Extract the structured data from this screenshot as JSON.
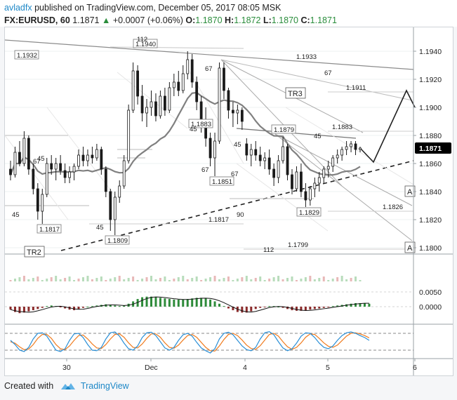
{
  "header": {
    "user": "avladfx",
    "published": "published on TradingView.com, December 05, 2017 08:05 MSK",
    "symbol": "FX:EURUSD, 60",
    "price": "1.1871",
    "change_arrow": "▲",
    "change": "+0.0007 (+0.06%)",
    "o_label": "O:",
    "o": "1.1870",
    "h_label": "H:",
    "h": "1.1872",
    "l_label": "L:",
    "l": "1.1870",
    "c_label": "C:",
    "c": "1.1871"
  },
  "footer": {
    "created_with": "Created with",
    "brand": "TradingView"
  },
  "colors": {
    "up": "#1a1a1a",
    "ma": "#808080",
    "trend": "#999999",
    "macd_up": "#2e8b3a",
    "macd_down": "#8b2b2b",
    "stoch_k": "#2a8fd6",
    "stoch_d": "#f07c1f",
    "price_badge": "#000000"
  },
  "chart_data": {
    "type": "candlestick",
    "y_ticks": [
      "1.1940",
      "1.1920",
      "1.1900",
      "1.1880",
      "1.1860",
      "1.1840",
      "1.1820",
      "1.1800"
    ],
    "ylim": [
      1.1796,
      1.1956
    ],
    "x_ticks": [
      "30",
      "Dec",
      "4",
      "5",
      "6"
    ],
    "current_price": "1.1871",
    "price_labels": [
      {
        "text": "1.1932",
        "y": 1.1932
      },
      {
        "text": "1.1940",
        "y": 1.194
      },
      {
        "text": "1.1883",
        "y": 1.1883
      },
      {
        "text": "1.1817",
        "y": 1.1817
      },
      {
        "text": "1.1809",
        "y": 1.1809
      },
      {
        "text": "1.1851",
        "y": 1.1851
      },
      {
        "text": "1.1879",
        "y": 1.1879
      },
      {
        "text": "1.1829",
        "y": 1.1829
      }
    ],
    "level_labels": [
      {
        "text": "1.1933",
        "y": 1.1933
      },
      {
        "text": "1.1911",
        "y": 1.1911
      },
      {
        "text": "1.1883",
        "y": 1.1883
      },
      {
        "text": "1.1826",
        "y": 1.1826
      },
      {
        "text": "1.1817",
        "y": 1.1817
      },
      {
        "text": "1.1799",
        "y": 1.1799
      }
    ],
    "count_labels": [
      "112",
      "67",
      "45",
      "45",
      "45",
      "45",
      "67",
      "45",
      "67",
      "67",
      "45",
      "90",
      "112",
      "67"
    ],
    "pattern_labels": [
      "TR3",
      "TR2",
      "A",
      "A"
    ],
    "candles": [
      [
        1.1856,
        1.1862,
        1.1848,
        1.1852
      ],
      [
        1.1852,
        1.1872,
        1.185,
        1.1868
      ],
      [
        1.1868,
        1.1876,
        1.1858,
        1.186
      ],
      [
        1.186,
        1.1883,
        1.1858,
        1.1878
      ],
      [
        1.1878,
        1.188,
        1.1852,
        1.1856
      ],
      [
        1.1856,
        1.186,
        1.1838,
        1.1842
      ],
      [
        1.1842,
        1.1846,
        1.182,
        1.1826
      ],
      [
        1.1826,
        1.1842,
        1.1817,
        1.1838
      ],
      [
        1.1838,
        1.1864,
        1.1836,
        1.186
      ],
      [
        1.186,
        1.1866,
        1.1852,
        1.1856
      ],
      [
        1.1856,
        1.1864,
        1.1848,
        1.186
      ],
      [
        1.186,
        1.1866,
        1.1852,
        1.1855
      ],
      [
        1.1855,
        1.186,
        1.1846,
        1.185
      ],
      [
        1.185,
        1.1858,
        1.1846,
        1.1854
      ],
      [
        1.1854,
        1.186,
        1.1848,
        1.1858
      ],
      [
        1.1858,
        1.187,
        1.1856,
        1.1866
      ],
      [
        1.1866,
        1.1872,
        1.1858,
        1.1862
      ],
      [
        1.1862,
        1.187,
        1.1858,
        1.1866
      ],
      [
        1.1866,
        1.1872,
        1.186,
        1.1864
      ],
      [
        1.1864,
        1.1874,
        1.1862,
        1.187
      ],
      [
        1.187,
        1.1872,
        1.1852,
        1.1856
      ],
      [
        1.1856,
        1.1858,
        1.1836,
        1.184
      ],
      [
        1.184,
        1.1842,
        1.1812,
        1.182
      ],
      [
        1.182,
        1.184,
        1.1809,
        1.1836
      ],
      [
        1.1836,
        1.1848,
        1.1832,
        1.1844
      ],
      [
        1.1844,
        1.1866,
        1.1842,
        1.1862
      ],
      [
        1.1862,
        1.1902,
        1.186,
        1.1898
      ],
      [
        1.1898,
        1.1932,
        1.1896,
        1.1926
      ],
      [
        1.1926,
        1.193,
        1.1902,
        1.1908
      ],
      [
        1.1908,
        1.1916,
        1.189,
        1.1896
      ],
      [
        1.1896,
        1.1906,
        1.1886,
        1.19
      ],
      [
        1.19,
        1.1912,
        1.1894,
        1.1904
      ],
      [
        1.1904,
        1.191,
        1.189,
        1.1894
      ],
      [
        1.1894,
        1.1912,
        1.1892,
        1.1908
      ],
      [
        1.1908,
        1.1914,
        1.1894,
        1.1898
      ],
      [
        1.1898,
        1.1918,
        1.1896,
        1.1914
      ],
      [
        1.1914,
        1.1924,
        1.1908,
        1.1918
      ],
      [
        1.1918,
        1.1926,
        1.1908,
        1.1912
      ],
      [
        1.1912,
        1.193,
        1.191,
        1.1924
      ],
      [
        1.1924,
        1.194,
        1.192,
        1.1934
      ],
      [
        1.1934,
        1.1938,
        1.1914,
        1.1918
      ],
      [
        1.1918,
        1.1922,
        1.1898,
        1.1904
      ],
      [
        1.1904,
        1.1908,
        1.1882,
        1.189
      ],
      [
        1.189,
        1.19,
        1.1872,
        1.1878
      ],
      [
        1.1878,
        1.1882,
        1.1858,
        1.1864
      ],
      [
        1.1864,
        1.1882,
        1.1851,
        1.1876
      ],
      [
        1.1876,
        1.1932,
        1.1874,
        1.1928
      ],
      [
        1.1928,
        1.1932,
        1.1906,
        1.1912
      ],
      [
        1.1912,
        1.1914,
        1.1892,
        1.1898
      ],
      [
        1.1898,
        1.1904,
        1.1886,
        1.1896
      ],
      [
        1.1896,
        1.1902,
        1.1888,
        1.1898
      ],
      [
        1.1898,
        1.19,
        1.1884,
        1.189
      ],
      [
        1.1874,
        1.1878,
        1.1862,
        1.1866
      ],
      [
        1.1866,
        1.1874,
        1.1858,
        1.187
      ],
      [
        1.187,
        1.1876,
        1.1862,
        1.1866
      ],
      [
        1.1866,
        1.1872,
        1.1858,
        1.1862
      ],
      [
        1.1862,
        1.1868,
        1.1856,
        1.1864
      ],
      [
        1.1864,
        1.187,
        1.1852,
        1.1856
      ],
      [
        1.1856,
        1.186,
        1.1844,
        1.185
      ],
      [
        1.185,
        1.1866,
        1.1846,
        1.1862
      ],
      [
        1.1862,
        1.1879,
        1.186,
        1.1872
      ],
      [
        1.1872,
        1.1874,
        1.1848,
        1.1852
      ],
      [
        1.1852,
        1.1856,
        1.1838,
        1.1842
      ],
      [
        1.1842,
        1.1858,
        1.184,
        1.1854
      ],
      [
        1.1854,
        1.186,
        1.1836,
        1.184
      ],
      [
        1.184,
        1.1846,
        1.1829,
        1.1834
      ],
      [
        1.1834,
        1.1844,
        1.183,
        1.1842
      ],
      [
        1.1842,
        1.185,
        1.1836,
        1.1846
      ],
      [
        1.1846,
        1.1854,
        1.184,
        1.185
      ],
      [
        1.185,
        1.1858,
        1.1846,
        1.1856
      ],
      [
        1.1856,
        1.1862,
        1.185,
        1.1858
      ],
      [
        1.1858,
        1.1866,
        1.1854,
        1.1864
      ],
      [
        1.1864,
        1.187,
        1.186,
        1.1866
      ],
      [
        1.1866,
        1.1872,
        1.1862,
        1.187
      ],
      [
        1.187,
        1.1876,
        1.1866,
        1.1872
      ],
      [
        1.1872,
        1.1876,
        1.1868,
        1.1874
      ],
      [
        1.1874,
        1.1876,
        1.1866,
        1.187
      ],
      [
        1.187,
        1.1872,
        1.1868,
        1.1871
      ]
    ],
    "macd_ticks": [
      "0.0050",
      "0.0000"
    ],
    "macd_hist": [
      -0.001,
      -0.0018,
      -0.0022,
      -0.002,
      -0.0016,
      -0.0012,
      -0.0008,
      -0.0004,
      0.0002,
      0.0004,
      0.0002,
      -0.0002,
      -0.0006,
      -0.001,
      -0.0012,
      -0.0008,
      -0.0004,
      0.0,
      0.0002,
      0.0004,
      0.0006,
      0.0008,
      0.0006,
      0.0004,
      0.0002,
      0.0004,
      0.001,
      0.0018,
      0.0026,
      0.0032,
      0.0034,
      0.0034,
      0.0032,
      0.003,
      0.0028,
      0.0026,
      0.0024,
      0.0024,
      0.0024,
      0.0026,
      0.0028,
      0.003,
      0.003,
      0.0028,
      0.0024,
      0.0018,
      0.001,
      0.0002,
      -0.0006,
      -0.0012,
      -0.0018,
      -0.002,
      -0.002,
      -0.0016,
      -0.0008,
      -0.0004,
      -0.0002,
      0.0002,
      0.0002,
      0.0,
      -0.0004,
      -0.0008,
      -0.0012,
      -0.0014,
      -0.0014,
      -0.0012,
      -0.001,
      -0.0008,
      -0.0006,
      -0.0004,
      -0.0002,
      0.0002,
      0.0004,
      0.0006,
      0.0008,
      0.001,
      0.0012,
      0.0012,
      0.0012,
      0.001
    ],
    "stoch_k": [
      55,
      40,
      20,
      15,
      30,
      60,
      80,
      82,
      70,
      45,
      20,
      15,
      25,
      55,
      78,
      80,
      65,
      40,
      20,
      18,
      30,
      60,
      82,
      85,
      70,
      45,
      25,
      20,
      35,
      65,
      82,
      84,
      72,
      50,
      28,
      20,
      30,
      55,
      75,
      80,
      70,
      48,
      28,
      18,
      10,
      25,
      60,
      80,
      84,
      75,
      55,
      35,
      22,
      18,
      30,
      60,
      82,
      86,
      75,
      50,
      28,
      18,
      25,
      45,
      70,
      82,
      80,
      65,
      45,
      30,
      25,
      35,
      55,
      72,
      82,
      85,
      80,
      72,
      65,
      55
    ],
    "stoch_d": [
      50,
      45,
      32,
      22,
      24,
      40,
      62,
      76,
      76,
      62,
      40,
      25,
      22,
      35,
      55,
      72,
      74,
      60,
      42,
      28,
      26,
      40,
      60,
      76,
      78,
      66,
      46,
      30,
      28,
      42,
      62,
      78,
      78,
      66,
      46,
      30,
      27,
      38,
      56,
      72,
      76,
      66,
      48,
      30,
      18,
      17,
      35,
      58,
      76,
      80,
      72,
      56,
      38,
      26,
      23,
      36,
      56,
      76,
      80,
      70,
      50,
      32,
      23,
      30,
      46,
      66,
      78,
      76,
      62,
      46,
      34,
      30,
      38,
      54,
      70,
      80,
      82,
      78,
      72,
      64
    ]
  }
}
